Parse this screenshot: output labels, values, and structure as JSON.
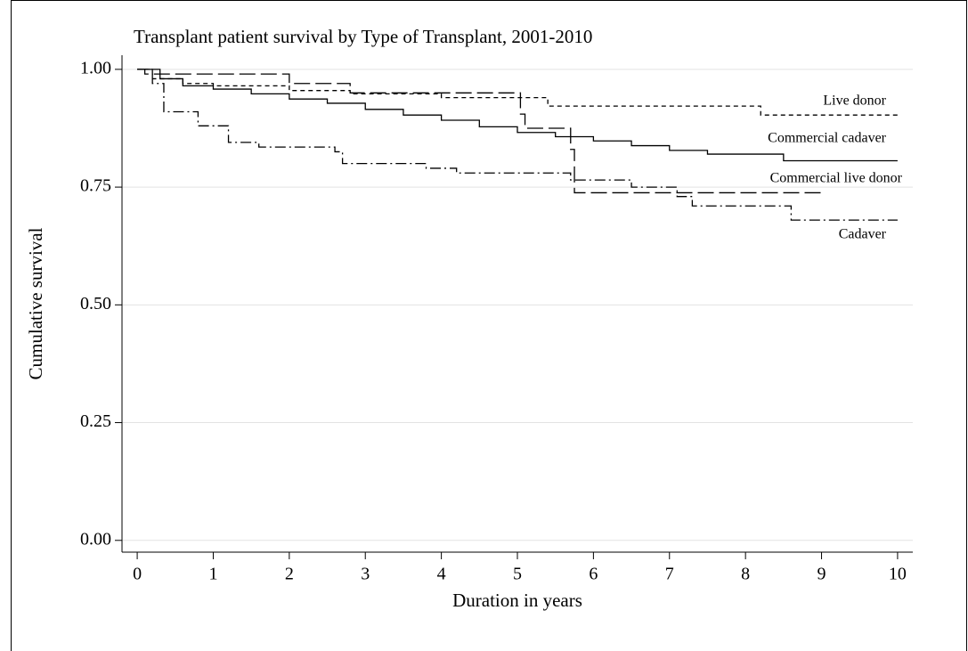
{
  "chart_data": {
    "type": "step",
    "title": "Transplant patient survival by Type of Transplant, 2001-2010",
    "x_label": "Duration in years",
    "y_label": "Cumulative survival",
    "xlim": [
      -0.2,
      10.2
    ],
    "ylim": [
      -0.025,
      1.03
    ],
    "xticks": [
      0,
      1,
      2,
      3,
      4,
      5,
      6,
      7,
      8,
      9,
      10
    ],
    "yticks": [
      {
        "value": 0,
        "label": "0.00"
      },
      {
        "value": 0.25,
        "label": "0.25"
      },
      {
        "value": 0.5,
        "label": "0.50"
      },
      {
        "value": 0.75,
        "label": "0.75"
      },
      {
        "value": 1,
        "label": "1.00"
      }
    ],
    "grid": true,
    "series": [
      {
        "name": "Live donor",
        "color": "#000000",
        "dash": "5,4",
        "x": [
          0,
          0.2,
          0.6,
          1.0,
          2.0,
          2.8,
          4.0,
          5.4,
          8.2,
          10
        ],
        "values": [
          1.0,
          0.98,
          0.97,
          0.965,
          0.955,
          0.948,
          0.94,
          0.922,
          0.903,
          0.903
        ]
      },
      {
        "name": "Commercial cadaver",
        "color": "#000000",
        "dash": "none",
        "x": [
          0,
          0.3,
          0.6,
          1.0,
          1.5,
          2.0,
          2.5,
          3.0,
          3.5,
          4.0,
          4.5,
          5.0,
          5.5,
          6.0,
          6.5,
          7.0,
          7.5,
          8.5,
          10
        ],
        "values": [
          1.0,
          0.98,
          0.965,
          0.958,
          0.948,
          0.937,
          0.928,
          0.915,
          0.903,
          0.892,
          0.878,
          0.866,
          0.857,
          0.848,
          0.838,
          0.828,
          0.82,
          0.806,
          0.806
        ]
      },
      {
        "name": "Commercial live donor",
        "color": "#000000",
        "dash": "18,6",
        "x": [
          0,
          0.1,
          2.0,
          2.8,
          5.04,
          5.1,
          5.7,
          5.75,
          9.0
        ],
        "values": [
          1.0,
          0.99,
          0.97,
          0.95,
          0.905,
          0.875,
          0.83,
          0.738,
          0.738
        ]
      },
      {
        "name": "Cadaver",
        "color": "#000000",
        "dash": "12,4,2,4",
        "x": [
          0,
          0.2,
          0.35,
          0.8,
          1.2,
          1.6,
          2.6,
          2.7,
          3.8,
          4.2,
          5.7,
          6.5,
          7.1,
          7.3,
          8.6,
          10
        ],
        "values": [
          1.0,
          0.97,
          0.91,
          0.88,
          0.845,
          0.835,
          0.825,
          0.8,
          0.79,
          0.78,
          0.765,
          0.75,
          0.73,
          0.71,
          0.68,
          0.68
        ]
      }
    ]
  }
}
